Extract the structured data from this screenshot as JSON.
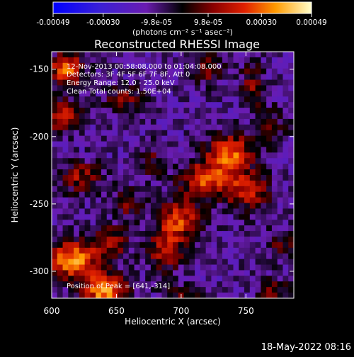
{
  "chart_data": {
    "type": "heatmap",
    "title": "Reconstructed RHESSI Image",
    "xlabel": "Heliocentric X (arcsec)",
    "ylabel": "Heliocentric Y (arcsec)",
    "xlim": [
      600,
      787
    ],
    "ylim": [
      -320,
      -137
    ],
    "x_ticks": [
      600,
      650,
      700,
      750
    ],
    "y_ticks": [
      -150,
      -200,
      -250,
      -300
    ],
    "colorbar": {
      "range": [
        -0.00049,
        0.00049
      ],
      "tick_values": [
        -0.00049,
        -0.0003,
        -9.8e-05,
        9.8e-05,
        0.0003,
        0.00049
      ],
      "tick_labels": [
        "-0.00049",
        "-0.00030",
        "-9.8e-05",
        "9.8e-05",
        "0.00030",
        "0.00049"
      ],
      "units": "(photons cm⁻² s⁻¹ asec⁻²)"
    },
    "info_lines": [
      "12-Nov-2013 00:58:08.000 to 01:04:08.000",
      "Detectors: 3F 4F 5F 6F 7F 8F, Att 0",
      "Energy Range: 12.0 - 25.0 keV",
      "Clean     Total counts: 1.50E+04"
    ],
    "peak_text": "Position of Peak = [641,-314]",
    "peak": {
      "x": 641,
      "y": -314
    },
    "sources": [
      {
        "x": 612,
        "y": -150,
        "amp": 0.00044,
        "sx": 9,
        "sy": 8
      },
      {
        "x": 608,
        "y": -185,
        "amp": 0.00034,
        "sx": 10,
        "sy": 8
      },
      {
        "x": 656,
        "y": -172,
        "amp": 0.00022,
        "sx": 10,
        "sy": 6
      },
      {
        "x": 722,
        "y": -150,
        "amp": 0.0002,
        "sx": 8,
        "sy": 8
      },
      {
        "x": 755,
        "y": -163,
        "amp": 0.00022,
        "sx": 6,
        "sy": 12
      },
      {
        "x": 738,
        "y": -212,
        "amp": 0.0004,
        "sx": 12,
        "sy": 10
      },
      {
        "x": 720,
        "y": -232,
        "amp": 0.00036,
        "sx": 14,
        "sy": 10
      },
      {
        "x": 752,
        "y": -240,
        "amp": 0.0003,
        "sx": 12,
        "sy": 10
      },
      {
        "x": 698,
        "y": -262,
        "amp": 0.00036,
        "sx": 12,
        "sy": 10
      },
      {
        "x": 688,
        "y": -285,
        "amp": 0.0003,
        "sx": 10,
        "sy": 10
      },
      {
        "x": 622,
        "y": -230,
        "amp": 0.00025,
        "sx": 12,
        "sy": 8
      },
      {
        "x": 660,
        "y": -250,
        "amp": 0.00018,
        "sx": 8,
        "sy": 8
      },
      {
        "x": 616,
        "y": -292,
        "amp": 0.00046,
        "sx": 14,
        "sy": 10
      },
      {
        "x": 641,
        "y": -314,
        "amp": 0.00049,
        "sx": 12,
        "sy": 8
      },
      {
        "x": 646,
        "y": -278,
        "amp": 0.00026,
        "sx": 10,
        "sy": 8
      },
      {
        "x": 700,
        "y": -318,
        "amp": 0.00016,
        "sx": 10,
        "sy": 6
      },
      {
        "x": 778,
        "y": -280,
        "amp": 0.00016,
        "sx": 8,
        "sy": 8
      },
      {
        "x": 772,
        "y": -318,
        "amp": 0.00022,
        "sx": 8,
        "sy": 8
      },
      {
        "x": 676,
        "y": -218,
        "amp": 0.00016,
        "sx": 8,
        "sy": 8
      },
      {
        "x": 770,
        "y": -192,
        "amp": 0.00014,
        "sx": 8,
        "sy": 10
      }
    ],
    "background_level": -0.00012
  },
  "footer": {
    "timestamp": "18-May-2022 08:16"
  }
}
